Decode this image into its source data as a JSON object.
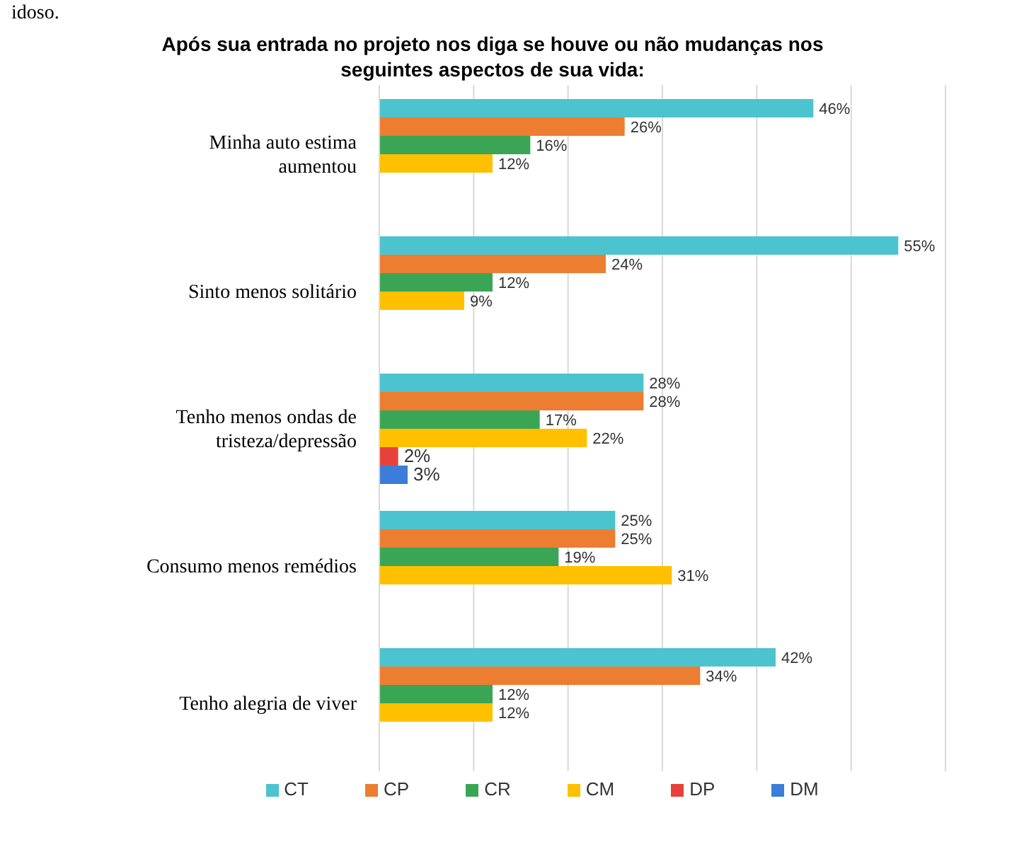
{
  "chart_data": {
    "type": "bar",
    "orientation": "horizontal",
    "title": "Após sua entrada no projeto nos diga se houve ou não mudanças nos seguintes aspectos de sua vida:",
    "annotations": [
      "idoso."
    ],
    "categories": [
      "Minha auto estima aumentou",
      "Sinto menos solitário",
      "Tenho menos ondas de tristeza/depressão",
      "Consumo menos remédios",
      "Tenho alegria de viver"
    ],
    "series": [
      {
        "name": "CT",
        "color": "#4bc4cf",
        "values": [
          46,
          55,
          28,
          25,
          42
        ],
        "value_labels": [
          "46%",
          "55%",
          "28%",
          "25%",
          "42%"
        ]
      },
      {
        "name": "CP",
        "color": "#ed7d31",
        "values": [
          26,
          24,
          28,
          25,
          34
        ],
        "value_labels": [
          "26%",
          "24%",
          "28%",
          "25%",
          "34%"
        ]
      },
      {
        "name": "CR",
        "color": "#3aa655",
        "values": [
          16,
          12,
          17,
          19,
          12
        ],
        "value_labels": [
          "16%",
          "12%",
          "17%",
          "19%",
          "12%"
        ]
      },
      {
        "name": "CM",
        "color": "#ffc000",
        "values": [
          12,
          9,
          22,
          31,
          12
        ],
        "value_labels": [
          "12%",
          "9%",
          "22%",
          "31%",
          "12%"
        ]
      },
      {
        "name": "DP",
        "color": "#e8413c",
        "values": [
          null,
          null,
          2,
          null,
          null
        ],
        "value_labels": [
          null,
          null,
          "2%",
          null,
          null
        ]
      },
      {
        "name": "DM",
        "color": "#3b7dd8",
        "values": [
          null,
          null,
          3,
          null,
          null
        ],
        "value_labels": [
          null,
          null,
          "3%",
          null,
          null
        ]
      }
    ],
    "xlim": [
      0,
      60
    ],
    "xticks": [
      {
        "value": 0,
        "label": null
      },
      {
        "value": 10,
        "label": null
      },
      {
        "value": 20,
        "label": null
      },
      {
        "value": 30,
        "label": null
      },
      {
        "value": 40,
        "label": null
      },
      {
        "value": 50,
        "label": null
      },
      {
        "value": 60,
        "label": null
      }
    ],
    "tick_labels": false,
    "grid": "x",
    "legend": "bottom"
  }
}
